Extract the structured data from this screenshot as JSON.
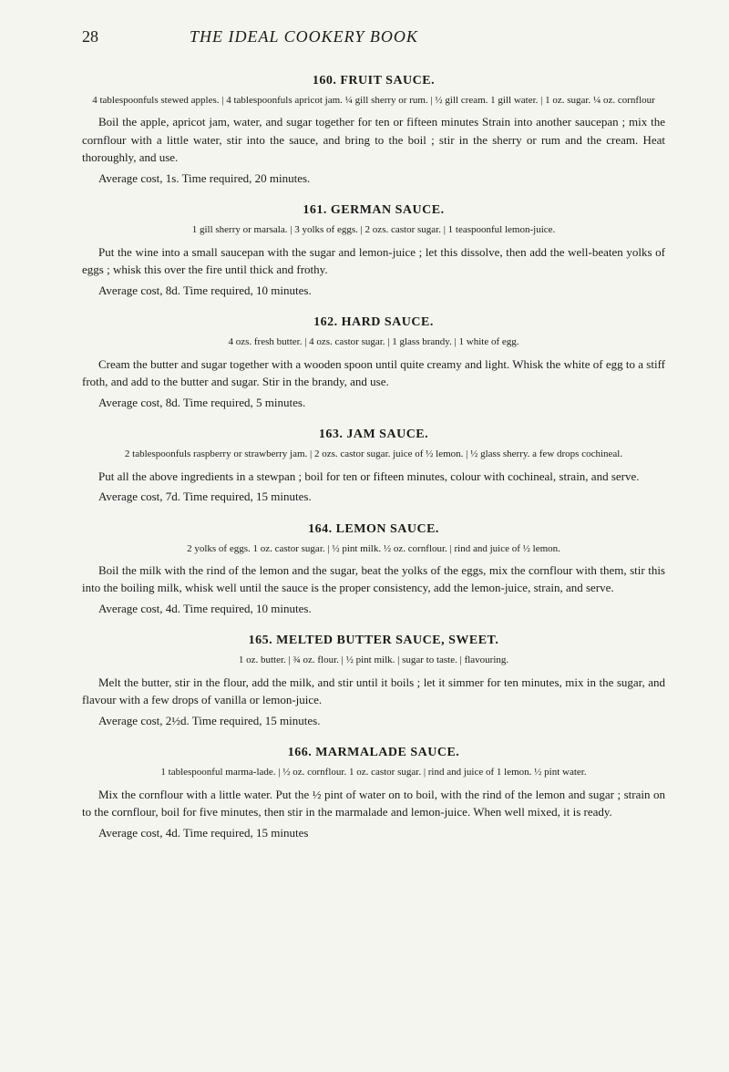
{
  "page_number": "28",
  "book_title": "THE IDEAL COOKERY BOOK",
  "recipes": [
    {
      "title": "160. FRUIT SAUCE.",
      "ingredients": "4 tablespoonfuls stewed apples.   |   4 tablespoonfuls apricot jam.   ¼ gill sherry or rum.   |   ½ gill cream.   1 gill water.   |   1 oz. sugar.   ¼ oz. cornflour",
      "body": "Boil the apple, apricot jam, water, and sugar together for ten or fifteen minutes Strain into another saucepan ; mix the cornflour with a little water, stir into the sauce, and bring to the boil ; stir in the sherry or rum and the cream. Heat thoroughly, and use.",
      "cost": "Average cost, 1s.   Time required, 20 minutes."
    },
    {
      "title": "161. GERMAN SAUCE.",
      "ingredients": "1 gill sherry or marsala.   |   3 yolks of eggs.   |   2 ozs. castor sugar.   |   1 teaspoonful lemon-juice.",
      "body": "Put the wine into a small saucepan with the sugar and lemon-juice ; let this dissolve, then add the well-beaten yolks of eggs ; whisk this over the fire until thick and frothy.",
      "cost": "Average cost, 8d.   Time required, 10 minutes."
    },
    {
      "title": "162. HARD SAUCE.",
      "ingredients": "4 ozs. fresh butter.   |   4 ozs. castor sugar.   |   1 glass brandy.   |   1 white of egg.",
      "body": "Cream the butter and sugar together with a wooden spoon until quite creamy and light. Whisk the white of egg to a stiff froth, and add to the butter and sugar. Stir in the brandy, and use.",
      "cost": "Average cost, 8d.   Time required, 5 minutes."
    },
    {
      "title": "163. JAM SAUCE.",
      "ingredients": "2 tablespoonfuls raspberry or strawberry jam.   |   2 ozs. castor sugar.   juice of ½ lemon.   |   ½ glass sherry.   a few drops cochineal.",
      "body": "Put all the above ingredients in a stewpan ; boil for ten or fifteen minutes, colour with cochineal, strain, and serve.",
      "cost": "Average cost, 7d.   Time required, 15 minutes."
    },
    {
      "title": "164. LEMON SAUCE.",
      "ingredients": "2 yolks of eggs.   1 oz. castor sugar.   |   ½ pint milk.   ½ oz. cornflour.   |   rind and juice of ½ lemon.",
      "body": "Boil the milk with the rind of the lemon and the sugar, beat the yolks of the eggs, mix the cornflour with them, stir this into the boiling milk, whisk well until the sauce is the proper consistency, add the lemon-juice, strain, and serve.",
      "cost": "Average cost, 4d.   Time required, 10 minutes."
    },
    {
      "title": "165. MELTED BUTTER SAUCE, SWEET.",
      "ingredients": "1 oz. butter.   |   ¾ oz. flour.   |  ½ pint milk.   |   sugar to taste.   |   flavouring.",
      "body": "Melt the butter, stir in the flour, add the milk, and stir until it boils ; let it simmer for ten minutes, mix in the sugar, and flavour with a few drops of vanilla or lemon-juice.",
      "cost": "Average cost, 2½d.   Time required, 15 minutes."
    },
    {
      "title": "166. MARMALADE SAUCE.",
      "ingredients": "1 tablespoonful marma-lade.   |   ½ oz. cornflour.   1 oz. castor sugar.   |   rind and juice of 1 lemon.   ½ pint water.",
      "body": "Mix the cornflour with a little water. Put the ½ pint of water on to boil, with the rind of the lemon and sugar ; strain on to the cornflour, boil for five minutes, then stir in the marmalade and lemon-juice. When well mixed, it is ready.",
      "cost": "Average cost, 4d.   Time required, 15 minutes"
    }
  ]
}
